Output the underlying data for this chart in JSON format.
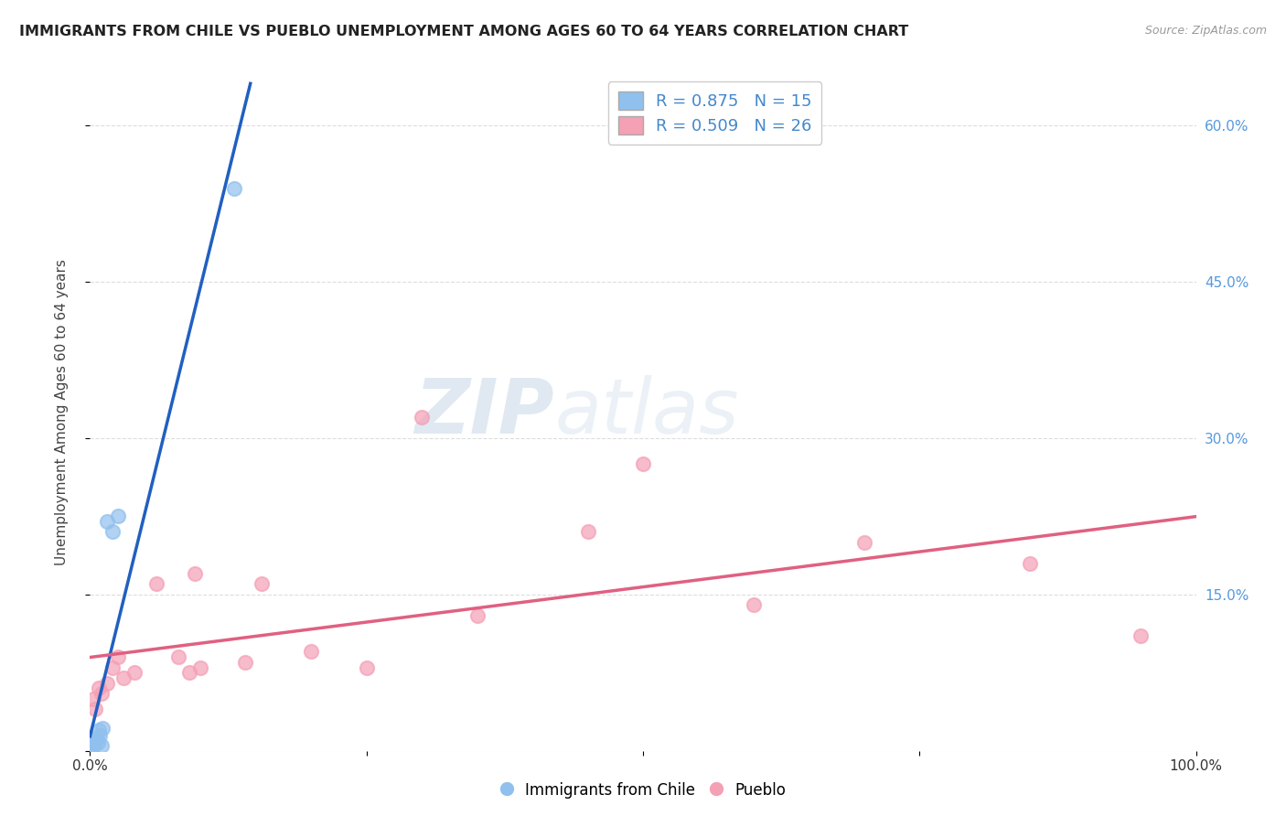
{
  "title": "IMMIGRANTS FROM CHILE VS PUEBLO UNEMPLOYMENT AMONG AGES 60 TO 64 YEARS CORRELATION CHART",
  "source": "Source: ZipAtlas.com",
  "ylabel": "Unemployment Among Ages 60 to 64 years",
  "xlim": [
    0,
    1.0
  ],
  "ylim": [
    0,
    0.65
  ],
  "chile_color": "#90c0ed",
  "pueblo_color": "#f4a0b5",
  "chile_line_color": "#2060c0",
  "pueblo_line_color": "#e06080",
  "R_chile": 0.875,
  "N_chile": 15,
  "R_pueblo": 0.509,
  "N_pueblo": 26,
  "watermark_zip": "ZIP",
  "watermark_atlas": "atlas",
  "chile_scatter_x": [
    0.001,
    0.002,
    0.003,
    0.004,
    0.005,
    0.006,
    0.007,
    0.008,
    0.009,
    0.01,
    0.011,
    0.015,
    0.02,
    0.025,
    0.13
  ],
  "chile_scatter_y": [
    0.005,
    0.01,
    0.005,
    0.008,
    0.01,
    0.012,
    0.008,
    0.02,
    0.015,
    0.005,
    0.022,
    0.22,
    0.21,
    0.225,
    0.54
  ],
  "pueblo_scatter_x": [
    0.003,
    0.005,
    0.008,
    0.01,
    0.015,
    0.02,
    0.025,
    0.03,
    0.04,
    0.06,
    0.08,
    0.09,
    0.095,
    0.1,
    0.14,
    0.155,
    0.2,
    0.25,
    0.3,
    0.35,
    0.45,
    0.5,
    0.6,
    0.7,
    0.85,
    0.95
  ],
  "pueblo_scatter_y": [
    0.05,
    0.04,
    0.06,
    0.055,
    0.065,
    0.08,
    0.09,
    0.07,
    0.075,
    0.16,
    0.09,
    0.075,
    0.17,
    0.08,
    0.085,
    0.16,
    0.095,
    0.08,
    0.32,
    0.13,
    0.21,
    0.275,
    0.14,
    0.2,
    0.18,
    0.11
  ],
  "background_color": "#ffffff",
  "grid_color": "#dddddd",
  "chile_trendline_x": [
    0.0,
    0.145
  ],
  "pueblo_trendline_x": [
    0.0,
    1.0
  ]
}
